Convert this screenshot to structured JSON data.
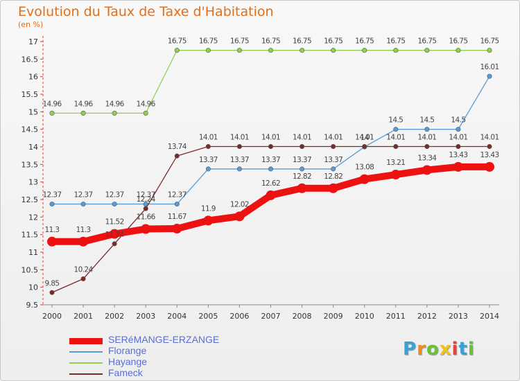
{
  "title": "Evolution du Taux de Taxe d'Habitation",
  "subtitle": "(en %)",
  "logo": {
    "letters": [
      "P",
      "r",
      "o",
      "x",
      "i",
      "t",
      "i"
    ],
    "colors": [
      "#3aa0d8",
      "#f28a1c",
      "#6cbf3a",
      "#f2c21c",
      "#e8403a",
      "#3aa0d8",
      "#6cbf3a"
    ]
  },
  "chart_data": {
    "type": "line",
    "x": [
      2000,
      2001,
      2002,
      2003,
      2004,
      2005,
      2006,
      2007,
      2008,
      2009,
      2010,
      2011,
      2012,
      2013,
      2014
    ],
    "ylim": [
      9.5,
      17
    ],
    "yticks": [
      9.5,
      10,
      10.5,
      11,
      11.5,
      12,
      12.5,
      13,
      13.5,
      14,
      14.5,
      15,
      15.5,
      16,
      16.5,
      17
    ],
    "grid": false,
    "legend_position": "bottom",
    "series": [
      {
        "name": "SERéMANGE-ERZANGE",
        "color": "#ee1111",
        "width": 10,
        "values": [
          11.3,
          11.3,
          11.52,
          11.66,
          11.67,
          11.9,
          12.02,
          12.62,
          12.82,
          12.82,
          13.08,
          13.21,
          13.34,
          13.43,
          13.43
        ],
        "labels": [
          "11.3",
          "11.3",
          "11.52",
          "11.66",
          "11.67",
          "11.9",
          "12.02",
          "12.62",
          "12.82",
          "12.82",
          "13.08",
          "13.21",
          "13.34",
          "13.43",
          "13.43"
        ]
      },
      {
        "name": "Florange",
        "color": "#5b9bd5",
        "width": 1.3,
        "values": [
          12.37,
          12.37,
          12.37,
          12.37,
          12.37,
          13.37,
          13.37,
          13.37,
          13.37,
          13.37,
          14,
          14.5,
          14.5,
          14.5,
          16.01
        ],
        "labels": [
          "12.37",
          "12.37",
          "12.37",
          "12.37",
          "12.37",
          "13.37",
          "13.37",
          "13.37",
          "13.37",
          "13.37",
          "14",
          "14.5",
          "14.5",
          "14.5",
          "16.01"
        ]
      },
      {
        "name": "Hayange",
        "color": "#8fd14f",
        "width": 1.3,
        "values": [
          14.96,
          14.96,
          14.96,
          14.96,
          16.75,
          16.75,
          16.75,
          16.75,
          16.75,
          16.75,
          16.75,
          16.75,
          16.75,
          16.75,
          16.75
        ],
        "labels": [
          "14.96",
          "14.96",
          "14.96",
          "14.96",
          "16.75",
          "16.75",
          "16.75",
          "16.75",
          "16.75",
          "16.75",
          "16.75",
          "16.75",
          "16.75",
          "16.75",
          "16.75"
        ]
      },
      {
        "name": "Fameck",
        "color": "#7a2a2a",
        "width": 1.3,
        "values": [
          9.85,
          10.24,
          11.24,
          12.24,
          13.74,
          14.01,
          14.01,
          14.01,
          14.01,
          14.01,
          14.01,
          14.01,
          14.01,
          14.01,
          14.01
        ],
        "labels": [
          "9.85",
          "10.24",
          "11.24",
          "12.24",
          "13.74",
          "14.01",
          "14.01",
          "14.01",
          "14.01",
          "14.01",
          "14.01",
          "14.01",
          "14.01",
          "14.01",
          "14.01"
        ]
      }
    ]
  }
}
